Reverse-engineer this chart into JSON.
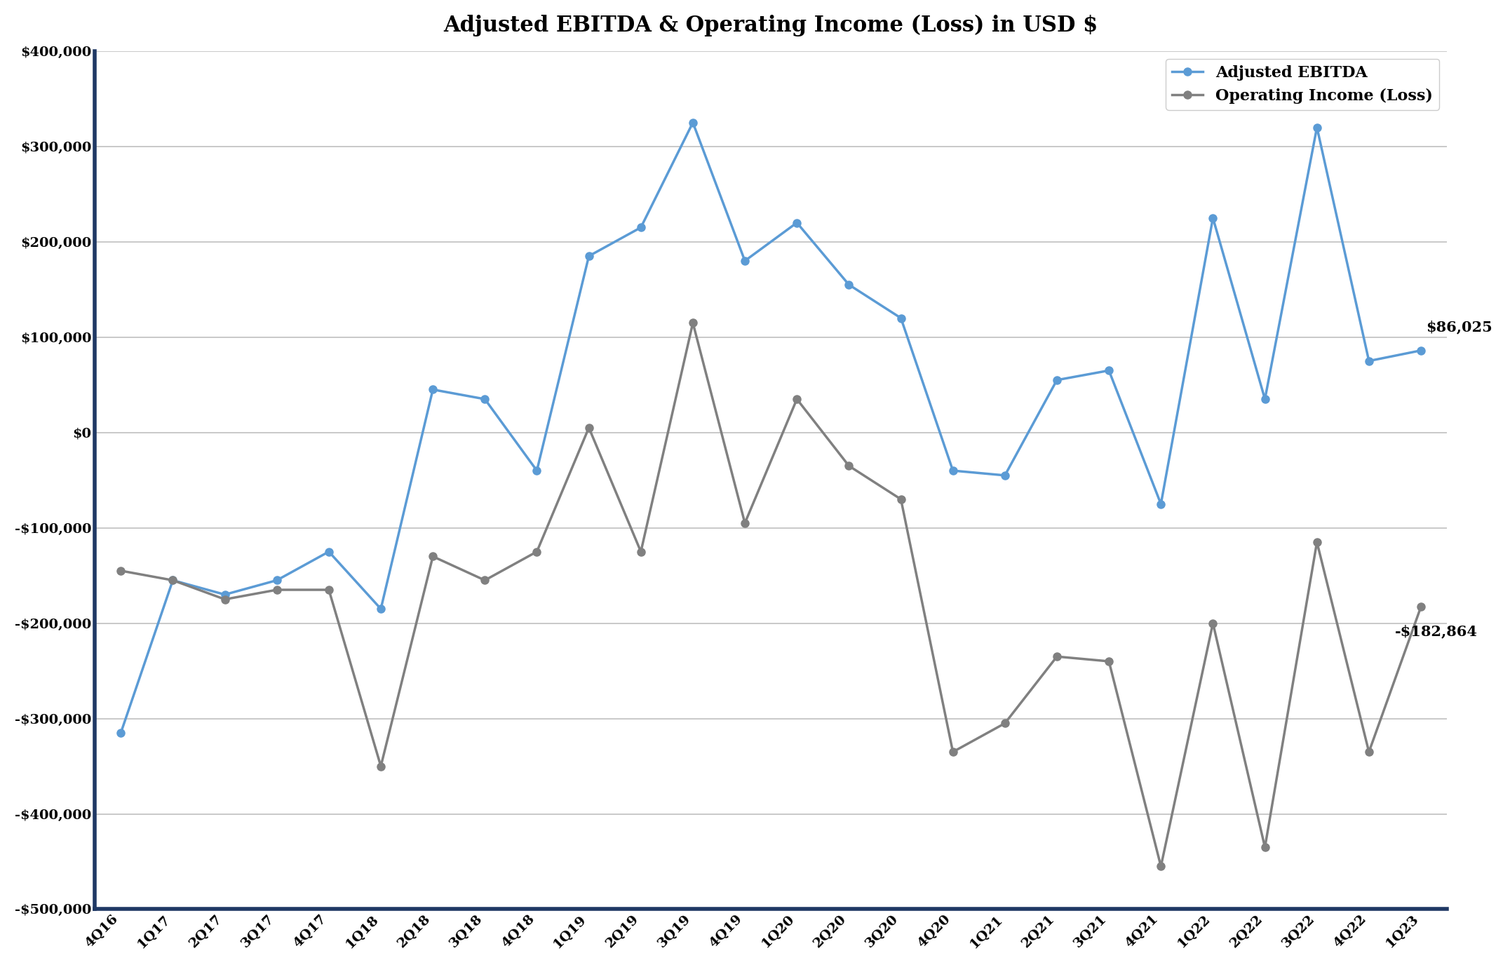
{
  "title": "Adjusted EBITDA & Operating Income (Loss) in USD $",
  "categories": [
    "4Q16",
    "1Q17",
    "2Q17",
    "3Q17",
    "4Q17",
    "1Q18",
    "2Q18",
    "3Q18",
    "4Q18",
    "1Q19",
    "2Q19",
    "3Q19",
    "4Q19",
    "1Q20",
    "2Q20",
    "3Q20",
    "4Q20",
    "1Q21",
    "2Q21",
    "3Q21",
    "4Q21",
    "1Q22",
    "2Q22",
    "3Q22",
    "4Q22",
    "1Q23"
  ],
  "adjusted_ebitda": [
    -315000,
    -155000,
    -170000,
    -155000,
    -125000,
    -185000,
    45000,
    35000,
    -40000,
    185000,
    215000,
    325000,
    180000,
    220000,
    155000,
    120000,
    -40000,
    -45000,
    55000,
    65000,
    -75000,
    225000,
    35000,
    320000,
    75000,
    86025
  ],
  "operating_income": [
    -145000,
    -155000,
    -175000,
    -165000,
    -165000,
    -350000,
    -130000,
    -155000,
    -125000,
    5000,
    -125000,
    115000,
    -95000,
    35000,
    -35000,
    -70000,
    -335000,
    -305000,
    -235000,
    -240000,
    -455000,
    -200000,
    -435000,
    -115000,
    -335000,
    -182864
  ],
  "ebitda_color": "#5B9BD5",
  "operating_color": "#808080",
  "ebitda_label": "Adjusted EBITDA",
  "operating_label": "Operating Income (Loss)",
  "ylim_min": -500000,
  "ylim_max": 400000,
  "ytick_step": 100000,
  "annotation_ebitda_label": "$86,025",
  "annotation_operating_label": "-$182,864",
  "background_color": "#FFFFFF",
  "grid_color": "#C0C0C0",
  "border_color": "#1F3864",
  "title_fontsize": 22,
  "tick_fontsize": 14,
  "legend_fontsize": 16
}
